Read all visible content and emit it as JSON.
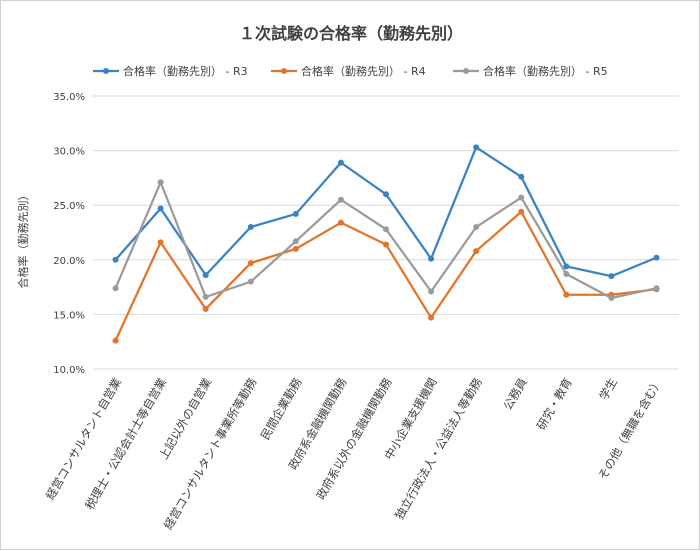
{
  "chart_data": {
    "type": "line",
    "title": "１次試験の合格率（勤務先別）",
    "ylabel": "合格率（勤務先別）",
    "xlabel": "",
    "ylim": [
      10,
      35
    ],
    "yticks": [
      10,
      15,
      20,
      25,
      30,
      35
    ],
    "ytick_labels": [
      "10.0%",
      "15.0%",
      "20.0%",
      "25.0%",
      "30.0%",
      "35.0%"
    ],
    "grid": true,
    "legend_position": "top",
    "categories": [
      "経営コンサルタント自営業",
      "税理士・公認会計士等自営業",
      "上記以外の自営業",
      "経営コンサルタント事業所等勤務",
      "民間企業勤務",
      "政府系金融機関勤務",
      "政府系以外の金融機関勤務",
      "中小企業支援機関",
      "独立行政法人・公益法人等勤務",
      "公務員",
      "研究・教育",
      "学生",
      "その他（無職を含む）"
    ],
    "series": [
      {
        "name": "合格率（勤務先別） - R3",
        "color": "#3a82c8",
        "values": [
          20.0,
          24.7,
          18.6,
          23.0,
          24.2,
          28.9,
          26.0,
          20.1,
          30.3,
          27.6,
          19.4,
          18.5,
          20.2
        ]
      },
      {
        "name": "合格率（勤務先別） - R4",
        "color": "#e2742c",
        "values": [
          12.6,
          21.6,
          15.5,
          19.7,
          21.0,
          23.4,
          21.4,
          14.7,
          20.8,
          24.4,
          16.8,
          16.8,
          17.3
        ]
      },
      {
        "name": "合格率（勤務先別） - R5",
        "color": "#9b9b9b",
        "values": [
          17.4,
          27.1,
          16.6,
          18.0,
          21.7,
          25.5,
          22.8,
          17.1,
          23.0,
          25.7,
          18.7,
          16.5,
          17.4
        ]
      }
    ]
  }
}
